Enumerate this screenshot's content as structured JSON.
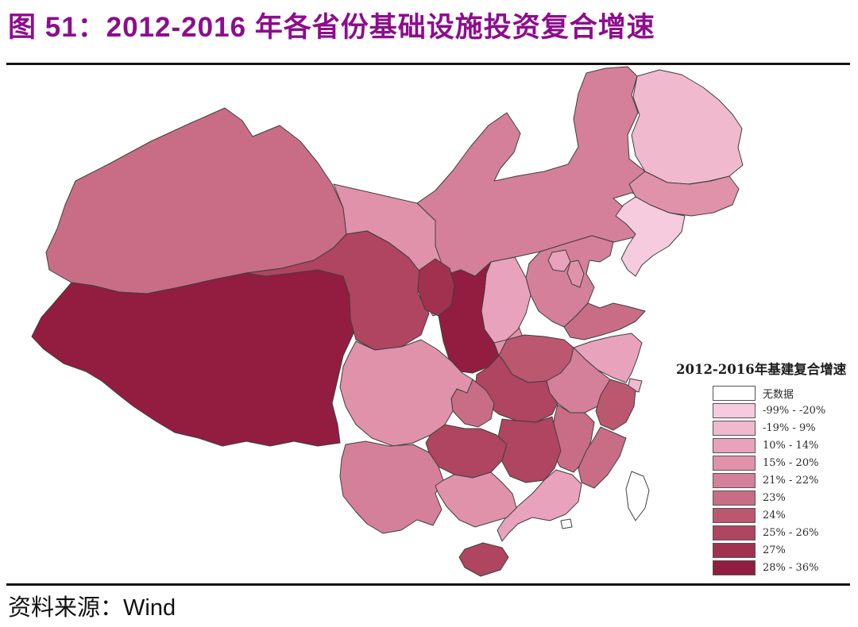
{
  "figure": {
    "title": "图 51：2012-2016 年各省份基础设施投资复合增速",
    "source_label": "资料来源：",
    "source_value": "Wind",
    "title_color": "#8e0c8e",
    "border_color": "#3f3f3f"
  },
  "legend": {
    "title": "2012-2016年基建复合增速",
    "items": [
      {
        "label": "无数据",
        "color": "#ffffff"
      },
      {
        "label": "-99% - -20%",
        "color": "#f6cbdd"
      },
      {
        "label": "-19% - 9%",
        "color": "#f0b9ce"
      },
      {
        "label": "10% - 14%",
        "color": "#e8a2bc"
      },
      {
        "label": "15% - 20%",
        "color": "#e092ab"
      },
      {
        "label": "21% - 22%",
        "color": "#d4809a"
      },
      {
        "label": "23%",
        "color": "#c96d86"
      },
      {
        "label": "24%",
        "color": "#bc5770"
      },
      {
        "label": "25% - 26%",
        "color": "#af4560"
      },
      {
        "label": "27%",
        "color": "#a23150"
      },
      {
        "label": "28% - 36%",
        "color": "#921d40"
      }
    ]
  },
  "chart_data": {
    "type": "choropleth_map",
    "title": "2012-2016年基建复合增速",
    "legend_position": "right",
    "regions": [
      {
        "name": "Xinjiang",
        "name_zh": "新疆",
        "bucket": "23%"
      },
      {
        "name": "Tibet",
        "name_zh": "西藏",
        "bucket": "28% - 36%"
      },
      {
        "name": "Qinghai",
        "name_zh": "青海",
        "bucket": "25% - 26%"
      },
      {
        "name": "Gansu",
        "name_zh": "甘肃",
        "bucket": "15% - 20%"
      },
      {
        "name": "InnerMongolia",
        "name_zh": "内蒙古",
        "bucket": "21% - 22%"
      },
      {
        "name": "Ningxia",
        "name_zh": "宁夏",
        "bucket": "27%"
      },
      {
        "name": "Shaanxi",
        "name_zh": "陕西",
        "bucket": "28% - 36%"
      },
      {
        "name": "Shanxi",
        "name_zh": "山西",
        "bucket": "10% - 14%"
      },
      {
        "name": "Hebei",
        "name_zh": "河北",
        "bucket": "21% - 22%"
      },
      {
        "name": "Beijing",
        "name_zh": "北京",
        "bucket": "10% - 14%"
      },
      {
        "name": "Tianjin",
        "name_zh": "天津",
        "bucket": "15% - 20%"
      },
      {
        "name": "Heilongjiang",
        "name_zh": "黑龙江",
        "bucket": "-19% - 9%"
      },
      {
        "name": "Jilin",
        "name_zh": "吉林",
        "bucket": "15% - 20%"
      },
      {
        "name": "Liaoning",
        "name_zh": "辽宁",
        "bucket": "-99% - -20%"
      },
      {
        "name": "Shandong",
        "name_zh": "山东",
        "bucket": "23%"
      },
      {
        "name": "Henan",
        "name_zh": "河南",
        "bucket": "24%"
      },
      {
        "name": "Jiangsu",
        "name_zh": "江苏",
        "bucket": "10% - 14%"
      },
      {
        "name": "Shanghai",
        "name_zh": "上海",
        "bucket": "-19% - 9%"
      },
      {
        "name": "Anhui",
        "name_zh": "安徽",
        "bucket": "21% - 22%"
      },
      {
        "name": "Zhejiang",
        "name_zh": "浙江",
        "bucket": "24%"
      },
      {
        "name": "Hubei",
        "name_zh": "湖北",
        "bucket": "25% - 26%"
      },
      {
        "name": "Chongqing",
        "name_zh": "重庆",
        "bucket": "23%"
      },
      {
        "name": "Sichuan",
        "name_zh": "四川",
        "bucket": "15% - 20%"
      },
      {
        "name": "Guizhou",
        "name_zh": "贵州",
        "bucket": "25% - 26%"
      },
      {
        "name": "Hunan",
        "name_zh": "湖南",
        "bucket": "25% - 26%"
      },
      {
        "name": "Jiangxi",
        "name_zh": "江西",
        "bucket": "23%"
      },
      {
        "name": "Fujian",
        "name_zh": "福建",
        "bucket": "23%"
      },
      {
        "name": "Yunnan",
        "name_zh": "云南",
        "bucket": "21% - 22%"
      },
      {
        "name": "Guangxi",
        "name_zh": "广西",
        "bucket": "15% - 20%"
      },
      {
        "name": "Guangdong",
        "name_zh": "广东",
        "bucket": "10% - 14%"
      },
      {
        "name": "Hainan",
        "name_zh": "海南",
        "bucket": "25% - 26%"
      },
      {
        "name": "Taiwan",
        "name_zh": "台湾",
        "bucket": "无数据"
      },
      {
        "name": "HongKong",
        "name_zh": "香港",
        "bucket": "无数据"
      }
    ]
  }
}
